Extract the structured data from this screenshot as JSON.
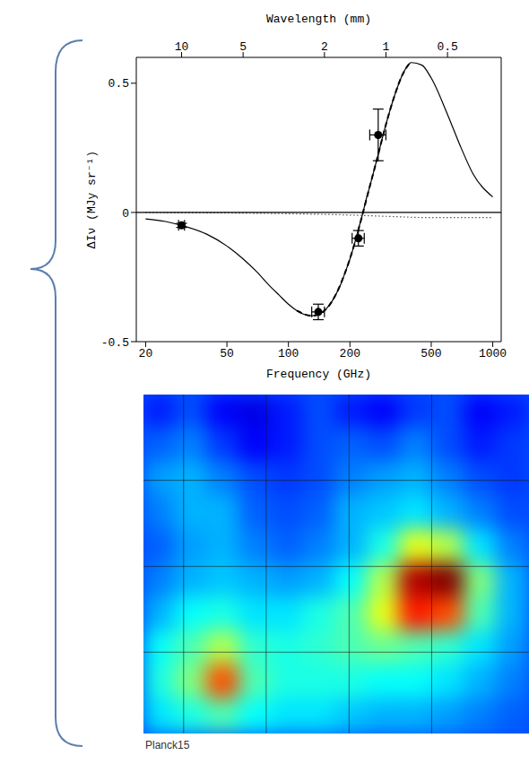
{
  "chart_data": [
    {
      "type": "line",
      "xlabel": "Frequency (GHz)",
      "ylabel": "ΔIν (MJy sr⁻¹)",
      "x2label": "Wavelength (mm)",
      "log": "x",
      "xlim": [
        18,
        1100
      ],
      "xticks": [
        20,
        50,
        100,
        200,
        500,
        1000
      ],
      "x2lim": [
        16.66,
        0.273
      ],
      "x2ticks": [
        10,
        5,
        2,
        1,
        0.5
      ],
      "ylim": [
        -0.5,
        0.6
      ],
      "yticks": [
        -0.5,
        0,
        0.5
      ],
      "grid": false,
      "series": [
        {
          "type": "line",
          "color": "#000000",
          "line_style": "solid",
          "x": [
            18,
            1100
          ],
          "values": [
            0,
            0
          ]
        },
        {
          "type": "line",
          "color": "#000000",
          "line_style": "dotted",
          "x": [
            20,
            100,
            200,
            300,
            500,
            1000
          ],
          "values": [
            0,
            -0.005,
            -0.01,
            -0.015,
            -0.02,
            -0.02
          ]
        },
        {
          "type": "line",
          "color": "#000000",
          "line_style": "solid",
          "x": [
            20,
            25,
            30,
            40,
            50,
            60,
            70,
            80,
            90,
            100,
            110,
            120,
            130,
            140,
            150,
            160,
            170,
            180,
            190,
            200,
            210,
            220,
            230,
            240,
            250,
            270,
            300,
            330,
            360,
            400,
            450,
            500,
            600,
            700,
            800,
            1000
          ],
          "values": [
            -0.025,
            -0.035,
            -0.05,
            -0.085,
            -0.13,
            -0.18,
            -0.23,
            -0.28,
            -0.32,
            -0.355,
            -0.38,
            -0.395,
            -0.4,
            -0.395,
            -0.38,
            -0.355,
            -0.32,
            -0.28,
            -0.23,
            -0.18,
            -0.125,
            -0.065,
            -0.01,
            0.05,
            0.1,
            0.2,
            0.34,
            0.45,
            0.53,
            0.58,
            0.57,
            0.52,
            0.38,
            0.25,
            0.15,
            0.06
          ]
        },
        {
          "type": "line",
          "color": "#000000",
          "line_style": "dashed",
          "x": [
            110,
            130,
            150,
            170,
            190,
            210,
            230,
            250,
            270,
            300,
            330,
            360,
            390
          ],
          "values": [
            -0.38,
            -0.4,
            -0.38,
            -0.32,
            -0.23,
            -0.125,
            -0.01,
            0.1,
            0.2,
            0.34,
            0.45,
            0.53,
            0.575
          ]
        },
        {
          "type": "scatter",
          "color": "#000000",
          "marker": "circle",
          "x": [
            30,
            140,
            220,
            275
          ],
          "values": [
            -0.05,
            -0.385,
            -0.1,
            0.3
          ],
          "x_err": [
            1,
            10,
            15,
            25
          ],
          "y_err": [
            0.008,
            0.03,
            0.03,
            0.1
          ]
        }
      ]
    },
    {
      "type": "heatmap",
      "title": "Planck15",
      "xlim": [
        0,
        12
      ],
      "ylim": [
        0,
        10
      ],
      "xticks": [
        1.25,
        3.82,
        6.4,
        8.97
      ],
      "yticks": [
        2.53,
        5.07,
        7.6
      ],
      "grid": true,
      "tick_labels": false,
      "zlim": [
        0,
        1
      ],
      "cells": [
        [
          0.15,
          0.2,
          0.12,
          0.1,
          0.15,
          0.2,
          0.15,
          0.12,
          0.18,
          0.2,
          0.12,
          0.15
        ],
        [
          0.22,
          0.25,
          0.18,
          0.12,
          0.15,
          0.2,
          0.22,
          0.2,
          0.25,
          0.2,
          0.15,
          0.18
        ],
        [
          0.28,
          0.3,
          0.25,
          0.2,
          0.18,
          0.2,
          0.25,
          0.28,
          0.3,
          0.25,
          0.2,
          0.18
        ],
        [
          0.25,
          0.3,
          0.3,
          0.22,
          0.2,
          0.22,
          0.3,
          0.32,
          0.35,
          0.3,
          0.25,
          0.2
        ],
        [
          0.22,
          0.28,
          0.3,
          0.25,
          0.22,
          0.25,
          0.3,
          0.4,
          0.6,
          0.55,
          0.35,
          0.25
        ],
        [
          0.25,
          0.3,
          0.32,
          0.3,
          0.28,
          0.3,
          0.38,
          0.55,
          0.95,
          1.0,
          0.5,
          0.3
        ],
        [
          0.3,
          0.38,
          0.4,
          0.35,
          0.35,
          0.4,
          0.45,
          0.6,
          0.85,
          0.8,
          0.45,
          0.3
        ],
        [
          0.38,
          0.45,
          0.55,
          0.42,
          0.4,
          0.42,
          0.45,
          0.48,
          0.45,
          0.42,
          0.35,
          0.28
        ],
        [
          0.4,
          0.5,
          0.8,
          0.45,
          0.4,
          0.4,
          0.4,
          0.38,
          0.38,
          0.35,
          0.3,
          0.25
        ],
        [
          0.35,
          0.4,
          0.45,
          0.38,
          0.35,
          0.35,
          0.32,
          0.3,
          0.3,
          0.28,
          0.25,
          0.22
        ]
      ]
    }
  ]
}
